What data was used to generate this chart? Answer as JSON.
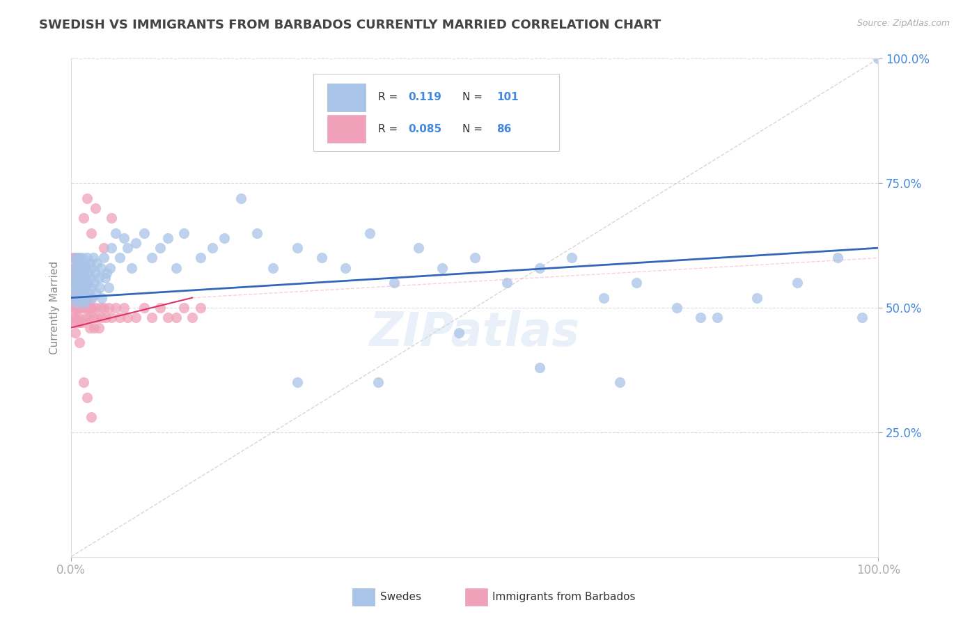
{
  "title": "SWEDISH VS IMMIGRANTS FROM BARBADOS CURRENTLY MARRIED CORRELATION CHART",
  "source_text": "Source: ZipAtlas.com",
  "ylabel": "Currently Married",
  "xlim": [
    0.0,
    1.0
  ],
  "ylim": [
    0.0,
    1.0
  ],
  "ytick_labels": [
    "25.0%",
    "50.0%",
    "75.0%",
    "100.0%"
  ],
  "ytick_positions": [
    0.25,
    0.5,
    0.75,
    1.0
  ],
  "watermark": "ZIPatlas",
  "swedes_color": "#a8c4e8",
  "barbados_color": "#f0a0b8",
  "swedes_line_color": "#3366bb",
  "barbados_line_color": "#dd3366",
  "diag_line_color": "#cccccc",
  "background_color": "#ffffff",
  "title_color": "#444444",
  "title_fontsize": 13,
  "axis_label_color": "#888888",
  "tick_color": "#aaaaaa",
  "grid_color": "#dddddd",
  "blue_color": "#4488dd",
  "legend_box_color": "#eeeeee",
  "swedes_x": [
    0.002,
    0.003,
    0.004,
    0.004,
    0.005,
    0.005,
    0.006,
    0.006,
    0.007,
    0.007,
    0.008,
    0.008,
    0.009,
    0.009,
    0.01,
    0.01,
    0.01,
    0.011,
    0.011,
    0.012,
    0.012,
    0.013,
    0.013,
    0.014,
    0.014,
    0.015,
    0.015,
    0.016,
    0.016,
    0.017,
    0.018,
    0.018,
    0.019,
    0.02,
    0.02,
    0.021,
    0.022,
    0.023,
    0.024,
    0.025,
    0.025,
    0.026,
    0.027,
    0.028,
    0.03,
    0.031,
    0.032,
    0.034,
    0.035,
    0.037,
    0.038,
    0.04,
    0.042,
    0.044,
    0.046,
    0.048,
    0.05,
    0.055,
    0.06,
    0.065,
    0.07,
    0.075,
    0.08,
    0.09,
    0.1,
    0.11,
    0.12,
    0.13,
    0.14,
    0.16,
    0.175,
    0.19,
    0.21,
    0.23,
    0.25,
    0.28,
    0.31,
    0.34,
    0.37,
    0.4,
    0.43,
    0.46,
    0.5,
    0.54,
    0.58,
    0.62,
    0.66,
    0.7,
    0.75,
    0.8,
    0.85,
    0.9,
    0.95,
    0.98,
    1.0,
    0.28,
    0.38,
    0.48,
    0.58,
    0.68,
    0.78
  ],
  "swedes_y": [
    0.56,
    0.54,
    0.58,
    0.52,
    0.6,
    0.55,
    0.57,
    0.53,
    0.59,
    0.51,
    0.56,
    0.54,
    0.58,
    0.52,
    0.6,
    0.55,
    0.57,
    0.53,
    0.59,
    0.56,
    0.54,
    0.58,
    0.52,
    0.6,
    0.55,
    0.57,
    0.53,
    0.59,
    0.51,
    0.56,
    0.54,
    0.58,
    0.52,
    0.6,
    0.55,
    0.57,
    0.53,
    0.59,
    0.56,
    0.54,
    0.58,
    0.52,
    0.6,
    0.55,
    0.57,
    0.53,
    0.59,
    0.56,
    0.54,
    0.58,
    0.52,
    0.6,
    0.56,
    0.57,
    0.54,
    0.58,
    0.62,
    0.65,
    0.6,
    0.64,
    0.62,
    0.58,
    0.63,
    0.65,
    0.6,
    0.62,
    0.64,
    0.58,
    0.65,
    0.6,
    0.62,
    0.64,
    0.72,
    0.65,
    0.58,
    0.62,
    0.6,
    0.58,
    0.65,
    0.55,
    0.62,
    0.58,
    0.6,
    0.55,
    0.58,
    0.6,
    0.52,
    0.55,
    0.5,
    0.48,
    0.52,
    0.55,
    0.6,
    0.48,
    1.0,
    0.35,
    0.35,
    0.45,
    0.38,
    0.35,
    0.48
  ],
  "barbados_x": [
    0.001,
    0.001,
    0.002,
    0.002,
    0.002,
    0.003,
    0.003,
    0.003,
    0.004,
    0.004,
    0.004,
    0.005,
    0.005,
    0.005,
    0.005,
    0.006,
    0.006,
    0.006,
    0.007,
    0.007,
    0.007,
    0.008,
    0.008,
    0.008,
    0.009,
    0.009,
    0.009,
    0.01,
    0.01,
    0.01,
    0.01,
    0.011,
    0.011,
    0.012,
    0.012,
    0.013,
    0.013,
    0.014,
    0.014,
    0.015,
    0.015,
    0.016,
    0.017,
    0.018,
    0.019,
    0.02,
    0.02,
    0.021,
    0.022,
    0.023,
    0.024,
    0.025,
    0.026,
    0.027,
    0.028,
    0.03,
    0.032,
    0.034,
    0.036,
    0.038,
    0.04,
    0.043,
    0.046,
    0.05,
    0.055,
    0.06,
    0.065,
    0.07,
    0.08,
    0.09,
    0.1,
    0.11,
    0.12,
    0.13,
    0.14,
    0.15,
    0.16,
    0.015,
    0.02,
    0.025,
    0.03,
    0.04,
    0.05,
    0.015,
    0.02,
    0.025
  ],
  "barbados_y": [
    0.56,
    0.52,
    0.6,
    0.55,
    0.5,
    0.58,
    0.53,
    0.48,
    0.56,
    0.52,
    0.47,
    0.6,
    0.55,
    0.5,
    0.45,
    0.58,
    0.53,
    0.48,
    0.56,
    0.52,
    0.47,
    0.6,
    0.55,
    0.5,
    0.58,
    0.53,
    0.48,
    0.56,
    0.52,
    0.47,
    0.43,
    0.55,
    0.5,
    0.58,
    0.53,
    0.56,
    0.52,
    0.5,
    0.47,
    0.58,
    0.53,
    0.55,
    0.52,
    0.5,
    0.48,
    0.55,
    0.52,
    0.5,
    0.48,
    0.46,
    0.5,
    0.52,
    0.5,
    0.48,
    0.46,
    0.5,
    0.48,
    0.46,
    0.5,
    0.48,
    0.5,
    0.48,
    0.5,
    0.48,
    0.5,
    0.48,
    0.5,
    0.48,
    0.48,
    0.5,
    0.48,
    0.5,
    0.48,
    0.48,
    0.5,
    0.48,
    0.5,
    0.68,
    0.72,
    0.65,
    0.7,
    0.62,
    0.68,
    0.35,
    0.32,
    0.28
  ]
}
